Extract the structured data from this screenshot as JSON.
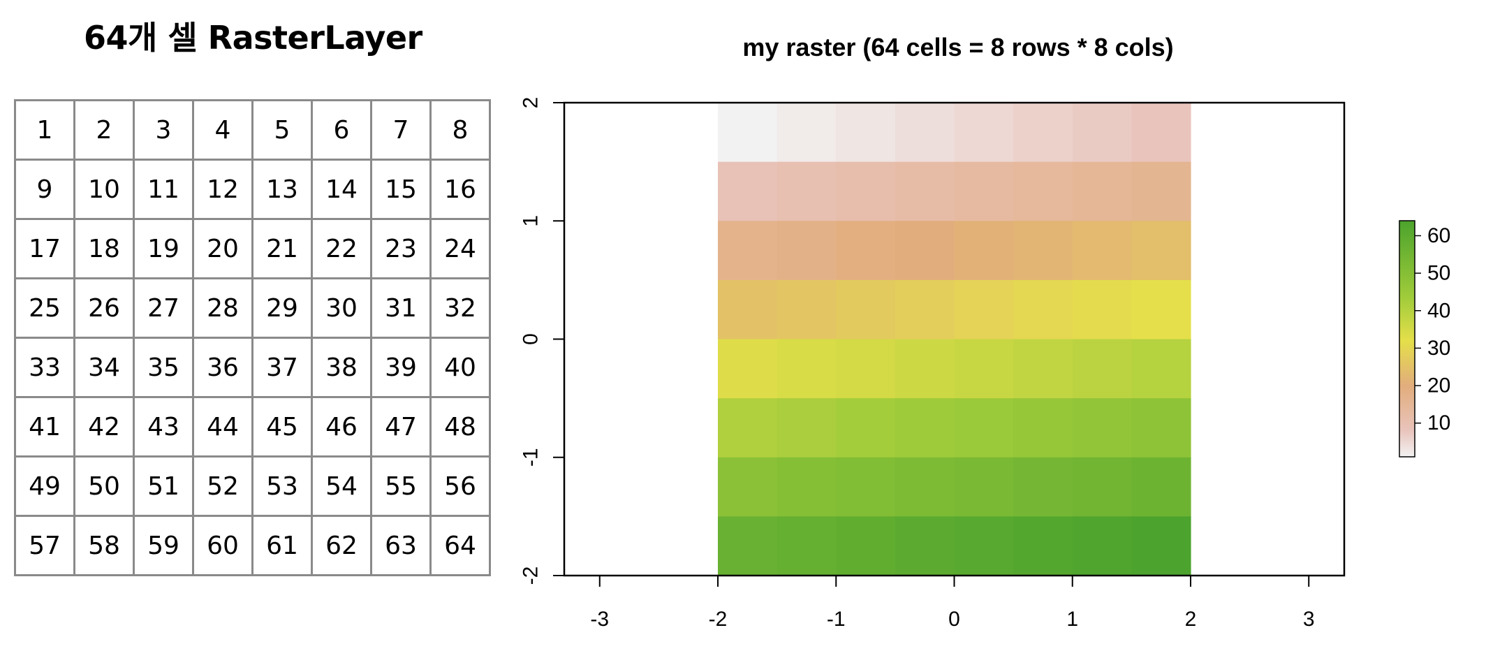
{
  "left_panel": {
    "title": "64개 셀 RasterLayer",
    "cells": [
      [
        1,
        2,
        3,
        4,
        5,
        6,
        7,
        8
      ],
      [
        9,
        10,
        11,
        12,
        13,
        14,
        15,
        16
      ],
      [
        17,
        18,
        19,
        20,
        21,
        22,
        23,
        24
      ],
      [
        25,
        26,
        27,
        28,
        29,
        30,
        31,
        32
      ],
      [
        33,
        34,
        35,
        36,
        37,
        38,
        39,
        40
      ],
      [
        41,
        42,
        43,
        44,
        45,
        46,
        47,
        48
      ],
      [
        49,
        50,
        51,
        52,
        53,
        54,
        55,
        56
      ],
      [
        57,
        58,
        59,
        60,
        61,
        62,
        63,
        64
      ]
    ]
  },
  "chart_data": {
    "type": "heatmap",
    "title": "my raster (64 cells = 8 rows * 8 cols)",
    "xlabel": "",
    "ylabel": "",
    "xlim": [
      -3.3,
      3.3
    ],
    "ylim": [
      -2,
      2
    ],
    "x_ticks": [
      -3,
      -2,
      -1,
      0,
      1,
      2,
      3
    ],
    "y_ticks": [
      -2,
      -1,
      0,
      1,
      2
    ],
    "extent": {
      "xmin": -2,
      "xmax": 2,
      "ymin": -2,
      "ymax": 2
    },
    "nrows": 8,
    "ncols": 8,
    "values": [
      [
        1,
        2,
        3,
        4,
        5,
        6,
        7,
        8
      ],
      [
        9,
        10,
        11,
        12,
        13,
        14,
        15,
        16
      ],
      [
        17,
        18,
        19,
        20,
        21,
        22,
        23,
        24
      ],
      [
        25,
        26,
        27,
        28,
        29,
        30,
        31,
        32
      ],
      [
        33,
        34,
        35,
        36,
        37,
        38,
        39,
        40
      ],
      [
        41,
        42,
        43,
        44,
        45,
        46,
        47,
        48
      ],
      [
        49,
        50,
        51,
        52,
        53,
        54,
        55,
        56
      ],
      [
        57,
        58,
        59,
        60,
        61,
        62,
        63,
        64
      ]
    ],
    "color_scale": {
      "stops": [
        {
          "value": 1,
          "color": "#f2f2f2"
        },
        {
          "value": 8,
          "color": "#e9c4bc"
        },
        {
          "value": 20,
          "color": "#e2ad7c"
        },
        {
          "value": 32,
          "color": "#e4df4a"
        },
        {
          "value": 44,
          "color": "#9ecb3a"
        },
        {
          "value": 64,
          "color": "#4ca32d"
        }
      ]
    },
    "legend": {
      "position": "right",
      "ticks": [
        10,
        20,
        30,
        40,
        50,
        60
      ],
      "range": [
        1,
        64
      ]
    }
  }
}
